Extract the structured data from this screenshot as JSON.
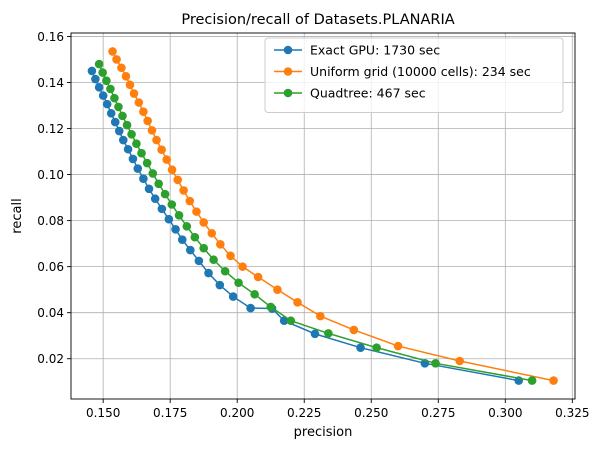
{
  "chart_data": {
    "type": "line",
    "title": "Precision/recall of Datasets.PLANARIA",
    "xlabel": "precision",
    "ylabel": "recall",
    "xlim": [
      0.138,
      0.326
    ],
    "ylim": [
      0.0025,
      0.1615
    ],
    "xticks": [
      0.15,
      0.175,
      0.2,
      0.225,
      0.25,
      0.275,
      0.3,
      0.325
    ],
    "xtick_labels": [
      "0.150",
      "0.175",
      "0.200",
      "0.225",
      "0.250",
      "0.275",
      "0.300",
      "0.325"
    ],
    "yticks": [
      0.02,
      0.04,
      0.06,
      0.08,
      0.1,
      0.12,
      0.14,
      0.16
    ],
    "ytick_labels": [
      "0.02",
      "0.04",
      "0.06",
      "0.08",
      "0.10",
      "0.12",
      "0.14",
      "0.16"
    ],
    "grid": true,
    "legend_position": "top-right",
    "series": [
      {
        "name": "Exact GPU: 1730 sec",
        "color": "#1f77b4",
        "marker": "circle",
        "x": [
          0.1458,
          0.1471,
          0.1485,
          0.15,
          0.1515,
          0.153,
          0.1545,
          0.156,
          0.1575,
          0.1593,
          0.1611,
          0.1629,
          0.165,
          0.1671,
          0.1694,
          0.1719,
          0.1745,
          0.177,
          0.1795,
          0.1825,
          0.1857,
          0.1893,
          0.1935,
          0.1985,
          0.205,
          0.213,
          0.2175,
          0.229,
          0.246,
          0.27,
          0.305
        ],
        "y": [
          0.145,
          0.1415,
          0.1379,
          0.1343,
          0.1306,
          0.1266,
          0.1228,
          0.1189,
          0.115,
          0.111,
          0.1068,
          0.1026,
          0.0982,
          0.0938,
          0.0895,
          0.0851,
          0.0806,
          0.0762,
          0.0717,
          0.0672,
          0.0625,
          0.0572,
          0.052,
          0.047,
          0.042,
          0.0418,
          0.0365,
          0.0308,
          0.0248,
          0.018,
          0.0105
        ]
      },
      {
        "name": "Uniform grid (10000 cells): 234 sec",
        "color": "#ff7f0e",
        "marker": "circle",
        "x": [
          0.1535,
          0.155,
          0.1568,
          0.1585,
          0.16,
          0.1615,
          0.1633,
          0.165,
          0.1666,
          0.1682,
          0.1699,
          0.1718,
          0.1737,
          0.1757,
          0.1778,
          0.18,
          0.1823,
          0.1848,
          0.1875,
          0.1905,
          0.1937,
          0.1975,
          0.202,
          0.2078,
          0.215,
          0.2225,
          0.231,
          0.2435,
          0.26,
          0.283,
          0.318
        ],
        "y": [
          0.1535,
          0.15,
          0.1464,
          0.1427,
          0.139,
          0.1352,
          0.1313,
          0.1273,
          0.1233,
          0.1192,
          0.115,
          0.1108,
          0.1065,
          0.1021,
          0.0977,
          0.0931,
          0.0885,
          0.0839,
          0.0792,
          0.0745,
          0.0697,
          0.0647,
          0.06,
          0.0555,
          0.05,
          0.0445,
          0.0385,
          0.0325,
          0.0255,
          0.019,
          0.0105
        ]
      },
      {
        "name": "Quadtree: 467 sec",
        "color": "#2ca02c",
        "marker": "circle",
        "x": [
          0.1485,
          0.1498,
          0.1512,
          0.1527,
          0.1542,
          0.1557,
          0.1572,
          0.1589,
          0.1606,
          0.1624,
          0.1643,
          0.1664,
          0.1685,
          0.1707,
          0.1731,
          0.1756,
          0.1783,
          0.1812,
          0.1842,
          0.1875,
          0.1912,
          0.1955,
          0.2005,
          0.2065,
          0.2125,
          0.22,
          0.234,
          0.252,
          0.274,
          0.31
        ],
        "y": [
          0.148,
          0.1443,
          0.1408,
          0.1372,
          0.1332,
          0.1294,
          0.1255,
          0.1215,
          0.1175,
          0.1134,
          0.1093,
          0.105,
          0.1005,
          0.096,
          0.0915,
          0.087,
          0.0823,
          0.0775,
          0.0728,
          0.068,
          0.063,
          0.058,
          0.053,
          0.048,
          0.0425,
          0.0365,
          0.031,
          0.0248,
          0.018,
          0.0105
        ]
      }
    ]
  }
}
